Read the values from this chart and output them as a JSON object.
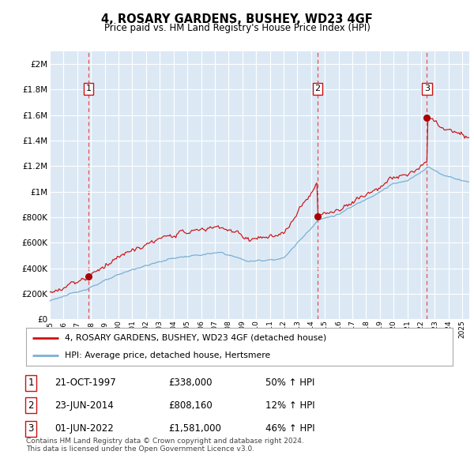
{
  "title": "4, ROSARY GARDENS, BUSHEY, WD23 4GF",
  "subtitle": "Price paid vs. HM Land Registry's House Price Index (HPI)",
  "ylabel_ticks": [
    "£0",
    "£200K",
    "£400K",
    "£600K",
    "£800K",
    "£1M",
    "£1.2M",
    "£1.4M",
    "£1.6M",
    "£1.8M",
    "£2M"
  ],
  "ytick_values": [
    0,
    200000,
    400000,
    600000,
    800000,
    1000000,
    1200000,
    1400000,
    1600000,
    1800000,
    2000000
  ],
  "ylim": [
    0,
    2100000
  ],
  "xlim_start": 1995.0,
  "xlim_end": 2025.5,
  "bg_color": "#dce9f5",
  "grid_color": "#ffffff",
  "red_line_color": "#cc1111",
  "blue_line_color": "#7ab0d4",
  "vline_color": "#ee3333",
  "marker_color": "#aa0000",
  "sale1_x": 1997.81,
  "sale1_y": 338000,
  "sale2_x": 2014.48,
  "sale2_y": 808160,
  "sale3_x": 2022.42,
  "sale3_y": 1581000,
  "legend_line1": "4, ROSARY GARDENS, BUSHEY, WD23 4GF (detached house)",
  "legend_line2": "HPI: Average price, detached house, Hertsmere",
  "table_rows": [
    {
      "num": "1",
      "date": "21-OCT-1997",
      "price": "£338,000",
      "change": "50% ↑ HPI"
    },
    {
      "num": "2",
      "date": "23-JUN-2014",
      "price": "£808,160",
      "change": "12% ↑ HPI"
    },
    {
      "num": "3",
      "date": "01-JUN-2022",
      "price": "£1,581,000",
      "change": "46% ↑ HPI"
    }
  ],
  "footer": "Contains HM Land Registry data © Crown copyright and database right 2024.\nThis data is licensed under the Open Government Licence v3.0."
}
